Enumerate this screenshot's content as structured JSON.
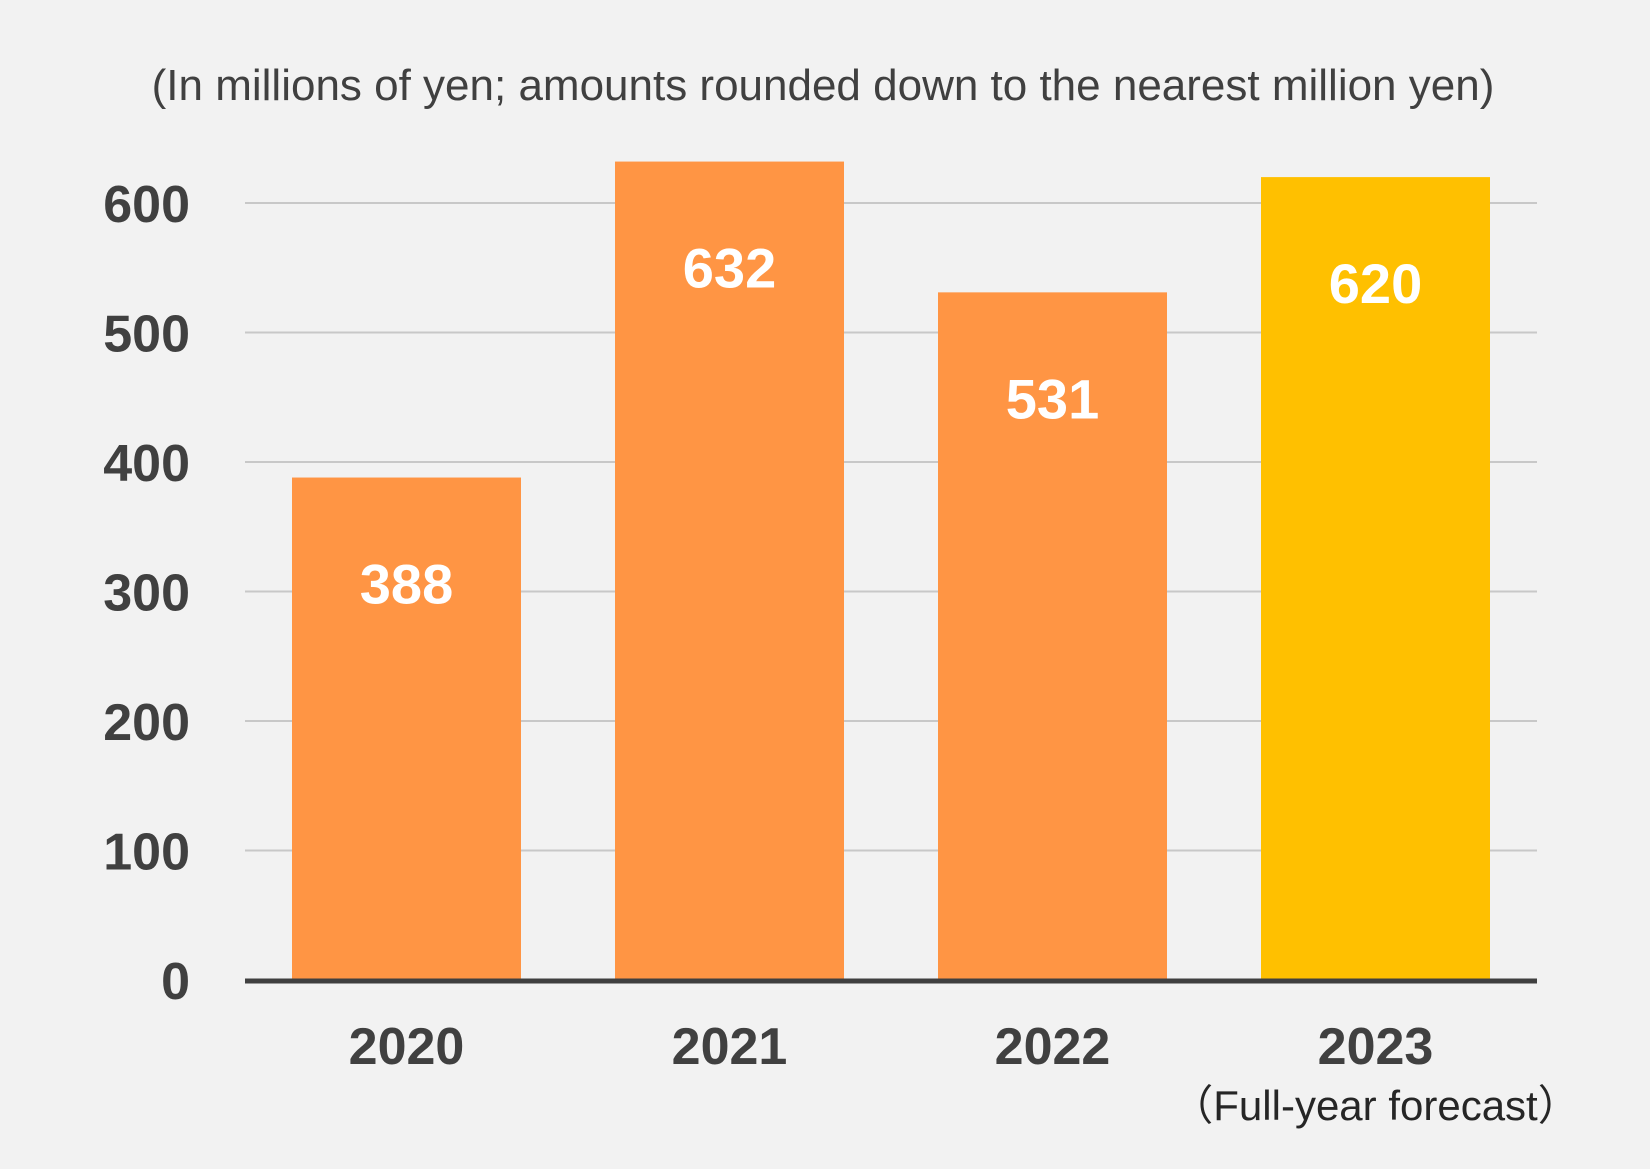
{
  "chart_data": {
    "type": "bar",
    "subtitle": "(In millions of yen; amounts rounded down to the nearest million yen)",
    "categories": [
      "2020",
      "2021",
      "2022",
      "2023"
    ],
    "category_notes": [
      "",
      "",
      "",
      "（Full-year forecast）"
    ],
    "values": [
      388,
      632,
      531,
      620
    ],
    "value_labels": [
      "388",
      "632",
      "531",
      "620"
    ],
    "bar_colors": [
      "#ff9544",
      "#ff9544",
      "#ff9544",
      "#ffc000"
    ],
    "yticks": [
      0,
      100,
      200,
      300,
      400,
      500,
      600
    ],
    "ytick_labels": [
      "0",
      "100",
      "200",
      "300",
      "400",
      "500",
      "600"
    ],
    "ylim": [
      0,
      600
    ],
    "grid": true,
    "legend": "none",
    "xlabel": "",
    "ylabel": ""
  }
}
